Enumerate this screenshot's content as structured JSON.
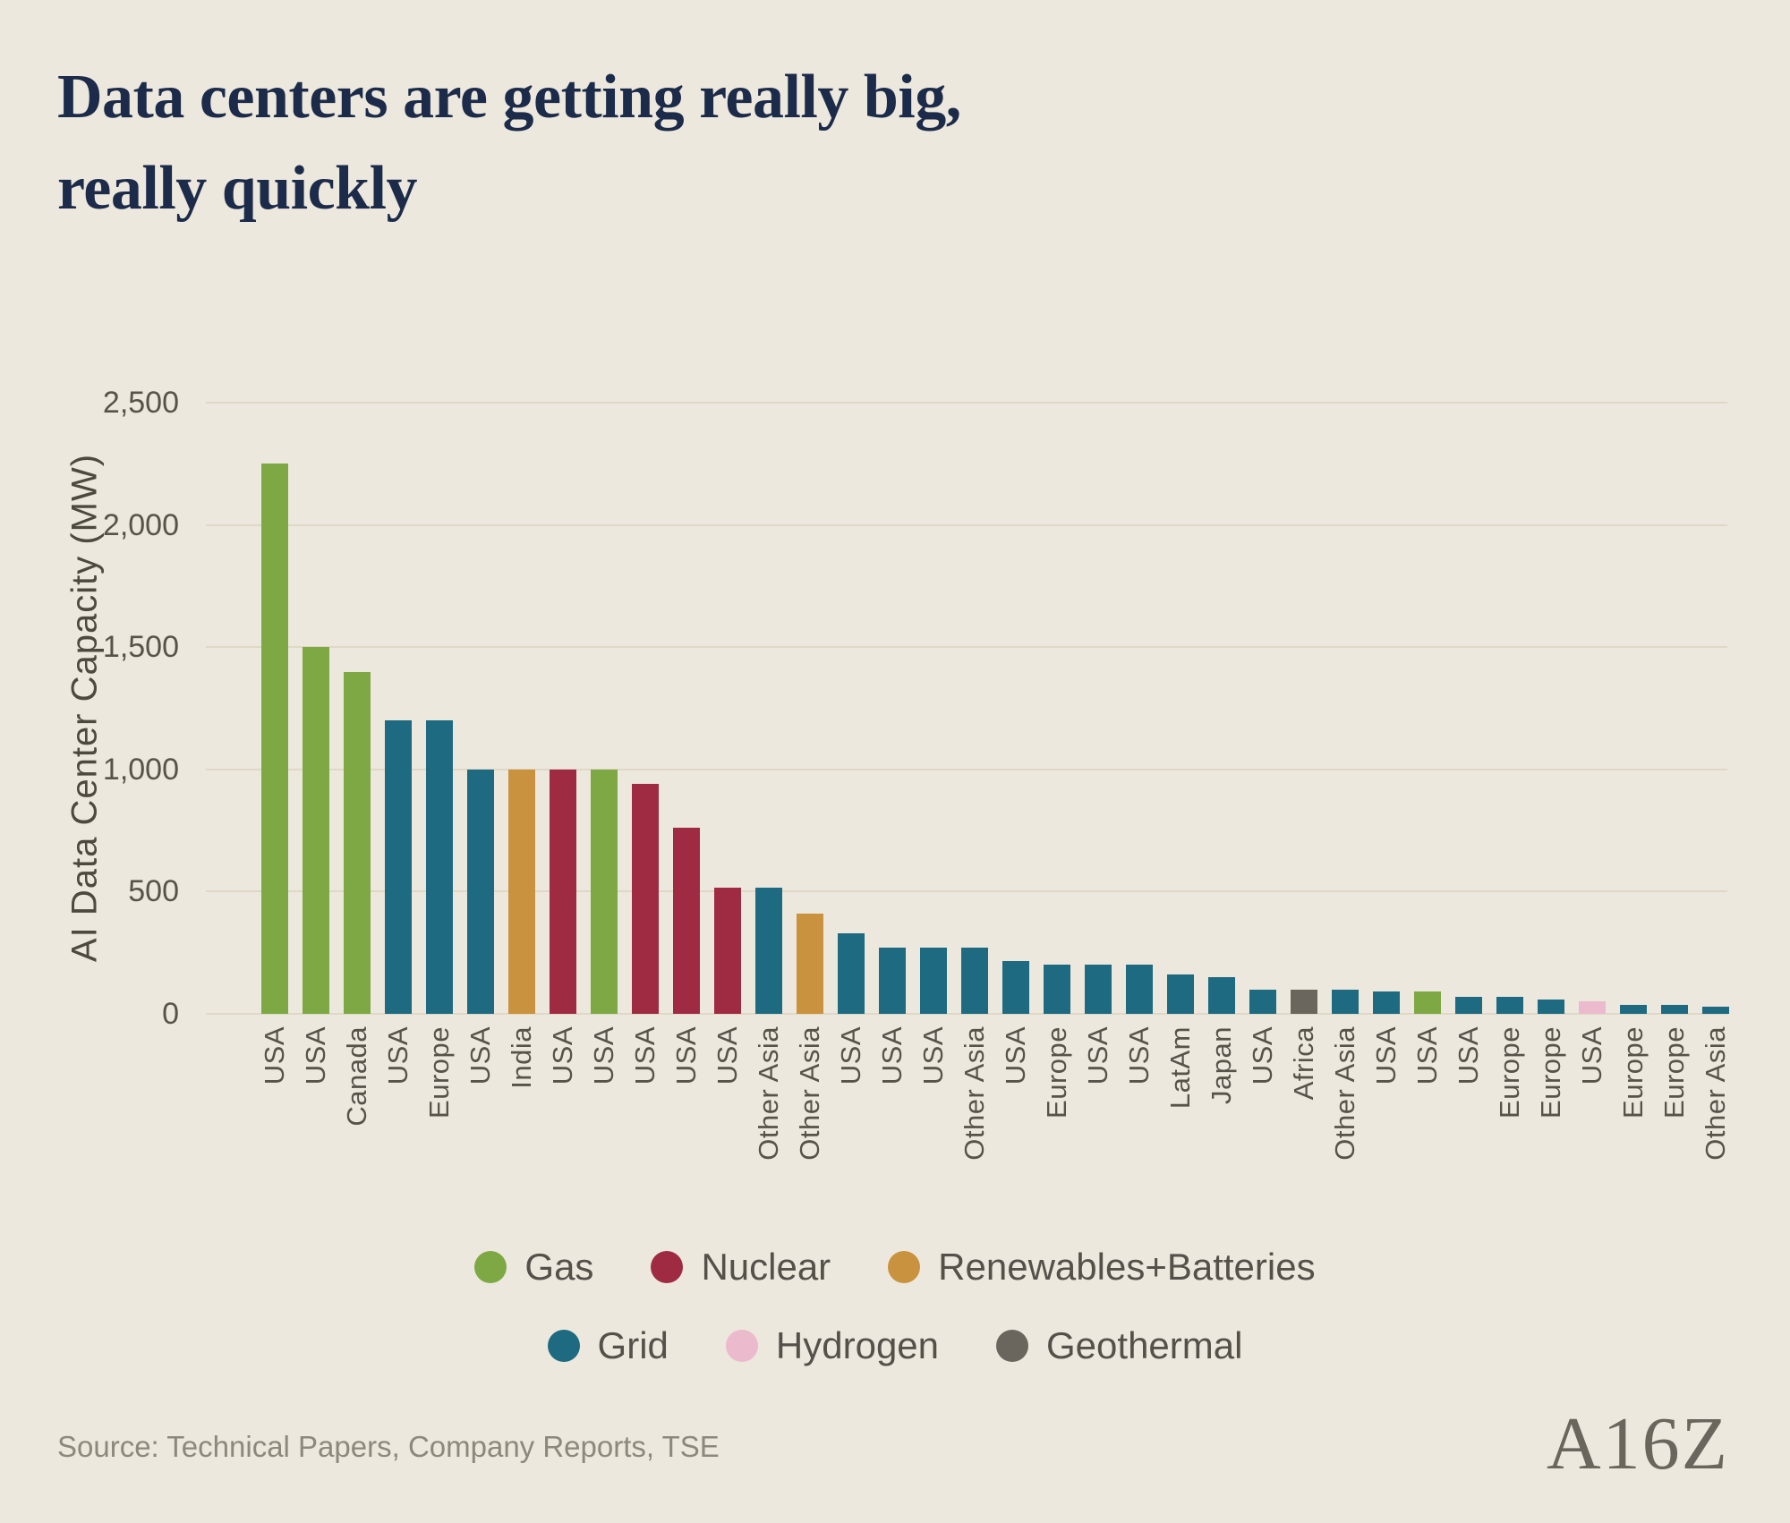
{
  "chart_data": {
    "type": "bar",
    "title": "Data centers are getting really big, really quickly",
    "title_lines": [
      "Data centers are getting really big,",
      "really quickly"
    ],
    "xlabel": "",
    "ylabel": "AI Data Center Capacity (MW)",
    "ylim": [
      0,
      2500
    ],
    "yticks": [
      0,
      500,
      1000,
      1500,
      2000,
      2500
    ],
    "ytick_labels": [
      "0",
      "500",
      "1,000",
      "1,500",
      "2,000",
      "2,500"
    ],
    "grid": true,
    "legend_position": "bottom",
    "legend": [
      {
        "name": "Gas",
        "color": "#7EA843",
        "row": 1
      },
      {
        "name": "Nuclear",
        "color": "#9E2B42",
        "row": 1
      },
      {
        "name": "Renewables+Batteries",
        "color": "#C8923E",
        "row": 1
      },
      {
        "name": "Grid",
        "color": "#1E6A81",
        "row": 2
      },
      {
        "name": "Hydrogen",
        "color": "#EBBACC",
        "row": 2
      },
      {
        "name": "Geothermal",
        "color": "#6A655D",
        "row": 2
      }
    ],
    "bars": [
      {
        "label": "USA",
        "value": 2250,
        "category": "Gas"
      },
      {
        "label": "USA",
        "value": 1500,
        "category": "Gas"
      },
      {
        "label": "Canada",
        "value": 1400,
        "category": "Gas"
      },
      {
        "label": "USA",
        "value": 1200,
        "category": "Grid"
      },
      {
        "label": "Europe",
        "value": 1200,
        "category": "Grid"
      },
      {
        "label": "USA",
        "value": 1000,
        "category": "Grid"
      },
      {
        "label": "India",
        "value": 1000,
        "category": "Renewables+Batteries"
      },
      {
        "label": "USA",
        "value": 1000,
        "category": "Nuclear"
      },
      {
        "label": "USA",
        "value": 1000,
        "category": "Gas"
      },
      {
        "label": "USA",
        "value": 940,
        "category": "Nuclear"
      },
      {
        "label": "USA",
        "value": 760,
        "category": "Nuclear"
      },
      {
        "label": "USA",
        "value": 515,
        "category": "Nuclear"
      },
      {
        "label": "Other Asia",
        "value": 515,
        "category": "Grid"
      },
      {
        "label": "Other Asia",
        "value": 410,
        "category": "Renewables+Batteries"
      },
      {
        "label": "USA",
        "value": 330,
        "category": "Grid"
      },
      {
        "label": "USA",
        "value": 270,
        "category": "Grid"
      },
      {
        "label": "USA",
        "value": 270,
        "category": "Grid"
      },
      {
        "label": "Other Asia",
        "value": 270,
        "category": "Grid"
      },
      {
        "label": "USA",
        "value": 215,
        "category": "Grid"
      },
      {
        "label": "Europe",
        "value": 200,
        "category": "Grid"
      },
      {
        "label": "USA",
        "value": 200,
        "category": "Grid"
      },
      {
        "label": "USA",
        "value": 200,
        "category": "Grid"
      },
      {
        "label": "LatAm",
        "value": 160,
        "category": "Grid"
      },
      {
        "label": "Japan",
        "value": 150,
        "category": "Grid"
      },
      {
        "label": "USA",
        "value": 100,
        "category": "Grid"
      },
      {
        "label": "Africa",
        "value": 100,
        "category": "Geothermal"
      },
      {
        "label": "Other Asia",
        "value": 100,
        "category": "Grid"
      },
      {
        "label": "USA",
        "value": 90,
        "category": "Grid"
      },
      {
        "label": "USA",
        "value": 90,
        "category": "Gas"
      },
      {
        "label": "USA",
        "value": 70,
        "category": "Grid"
      },
      {
        "label": "Europe",
        "value": 70,
        "category": "Grid"
      },
      {
        "label": "Europe",
        "value": 60,
        "category": "Grid"
      },
      {
        "label": "USA",
        "value": 50,
        "category": "Hydrogen"
      },
      {
        "label": "Europe",
        "value": 35,
        "category": "Grid"
      },
      {
        "label": "Europe",
        "value": 35,
        "category": "Grid"
      },
      {
        "label": "Other Asia",
        "value": 30,
        "category": "Grid"
      }
    ]
  },
  "footer": {
    "source": "Source: Technical Papers, Company Reports, TSE",
    "logo_text": "A16Z"
  }
}
